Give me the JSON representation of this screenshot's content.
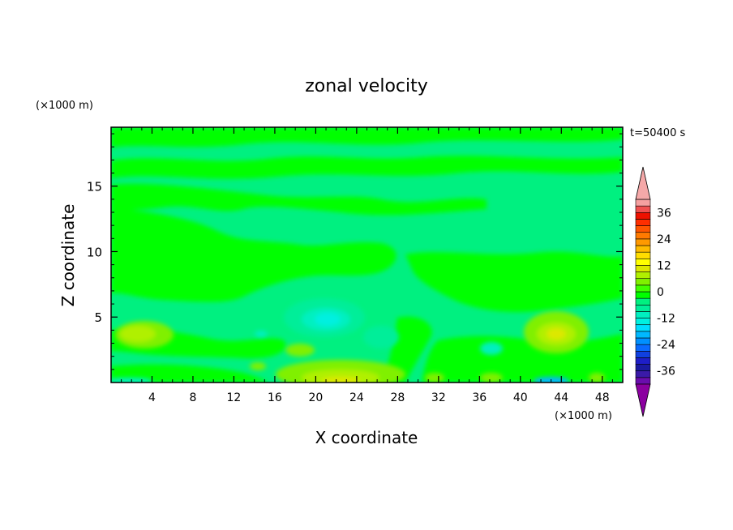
{
  "chart_data": {
    "type": "heatmap",
    "title": "zonal velocity",
    "xlabel": "X coordinate",
    "ylabel": "Z coordinate",
    "x_unit_label": "(×1000 m)",
    "y_unit_label": "(×1000 m)",
    "time_label": "t=50400 s",
    "xlim": [
      0,
      50
    ],
    "ylim": [
      0,
      19.5
    ],
    "xticks": [
      4,
      8,
      12,
      16,
      20,
      24,
      28,
      32,
      36,
      40,
      44,
      48
    ],
    "yticks": [
      5,
      10,
      15
    ],
    "colorbar": {
      "levels": [
        -42,
        -39,
        -36,
        -33,
        -30,
        -27,
        -24,
        -21,
        -18,
        -15,
        -12,
        -9,
        -6,
        -3,
        0,
        3,
        6,
        9,
        12,
        15,
        18,
        21,
        24,
        27,
        30,
        33,
        36,
        39,
        42
      ],
      "tick_labels": [
        "36",
        "24",
        "12",
        "0",
        "-12",
        "-24",
        "-36"
      ],
      "tick_values": [
        36,
        24,
        12,
        0,
        -12,
        -24,
        -36
      ],
      "colors": [
        "#6a0dad",
        "#3a1aa8",
        "#1a1aa0",
        "#1e1ec8",
        "#1040e0",
        "#0a6aff",
        "#0090ff",
        "#00b8ff",
        "#00ddff",
        "#00f0e0",
        "#00f0c0",
        "#00ee99",
        "#00f080",
        "#00ff00",
        "#40ff00",
        "#80f000",
        "#b0f000",
        "#dde800",
        "#ffff00",
        "#ffdd00",
        "#ffbb00",
        "#ff9900",
        "#ff7a00",
        "#ff5500",
        "#ff2e00",
        "#ee1100",
        "#f05050",
        "#f5a0a0"
      ],
      "min_extend_color": "#8b00a0",
      "max_extend_color": "#f5a8a8",
      "extend": "both"
    },
    "features": [
      {
        "x": 21.5,
        "z": 4.8,
        "value": -10
      },
      {
        "x": 22,
        "z": 0.4,
        "value": 10
      },
      {
        "x": 43.5,
        "z": 3.7,
        "value": 9
      },
      {
        "x": 5,
        "z": 3.7,
        "value": 5
      },
      {
        "x": 44,
        "z": 0.2,
        "value": -12
      },
      {
        "x": 37.5,
        "z": 2.6,
        "value": -5
      }
    ]
  }
}
